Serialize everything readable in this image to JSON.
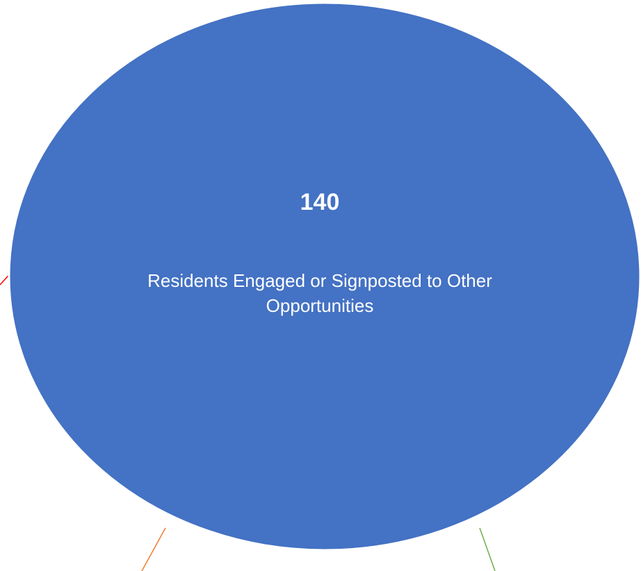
{
  "main_node": {
    "value": "140",
    "label": "Residents Engaged or Signposted to Other Opportunities",
    "fill_color": "#4472C4",
    "outline_color": "#FFFFFF",
    "text_color": "#FFFFFF"
  },
  "connectors": [
    {
      "name": "connector-left",
      "color": "#FF0000"
    },
    {
      "name": "connector-bottom-left",
      "color": "#ED7D31"
    },
    {
      "name": "connector-bottom-right",
      "color": "#70AD47"
    }
  ]
}
